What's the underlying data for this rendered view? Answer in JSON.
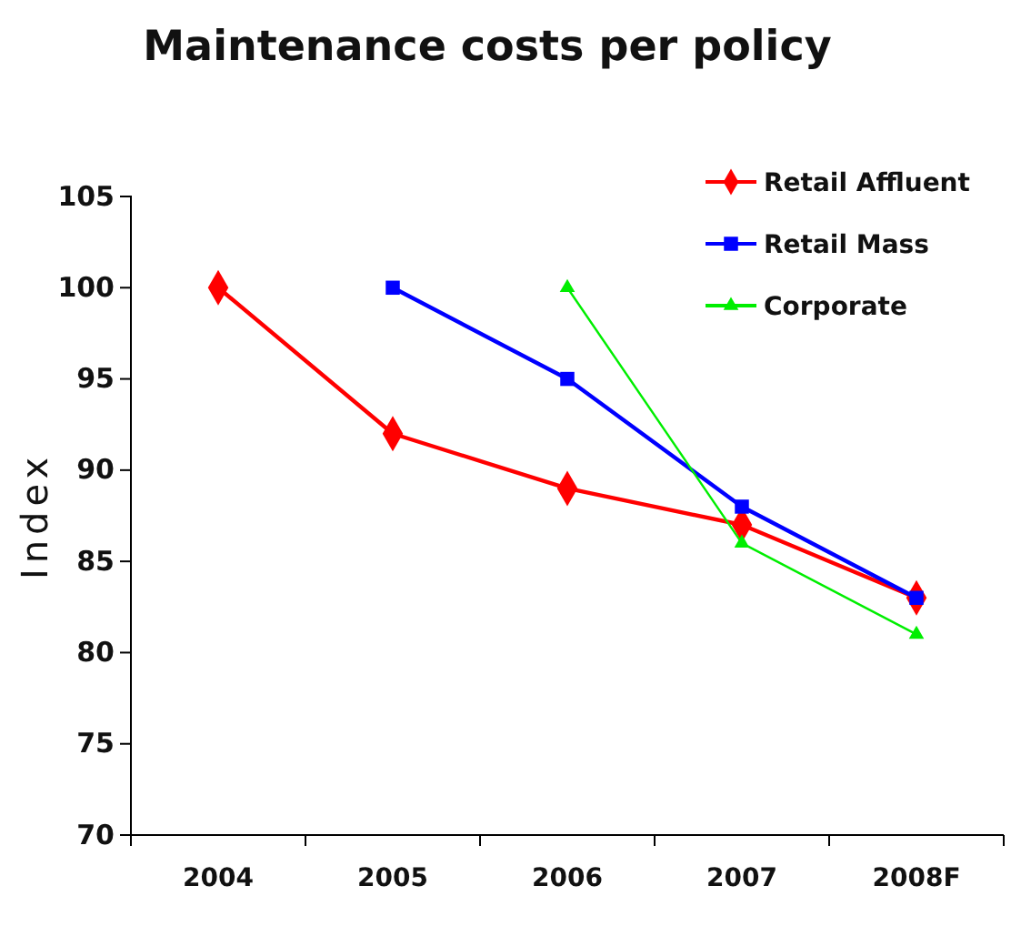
{
  "chart_data": {
    "type": "line",
    "title": "Maintenance costs per policy",
    "ylabel": "Index",
    "categories": [
      "2004",
      "2005",
      "2006",
      "2007",
      "2008F"
    ],
    "series": [
      {
        "name": "Retail Affluent",
        "color": "#ff0000",
        "marker": "diamond",
        "values": [
          100,
          92,
          89,
          87,
          83
        ]
      },
      {
        "name": "Retail Mass",
        "color": "#0000ff",
        "marker": "square",
        "values": [
          null,
          100,
          95,
          88,
          83
        ]
      },
      {
        "name": "Corporate",
        "color": "#00ee00",
        "marker": "triangle",
        "values": [
          null,
          null,
          100,
          86,
          81
        ]
      }
    ],
    "ylim": [
      70,
      105
    ],
    "yticks": [
      70,
      75,
      80,
      85,
      90,
      95,
      100,
      105
    ],
    "grid": false,
    "legend": "top right"
  }
}
